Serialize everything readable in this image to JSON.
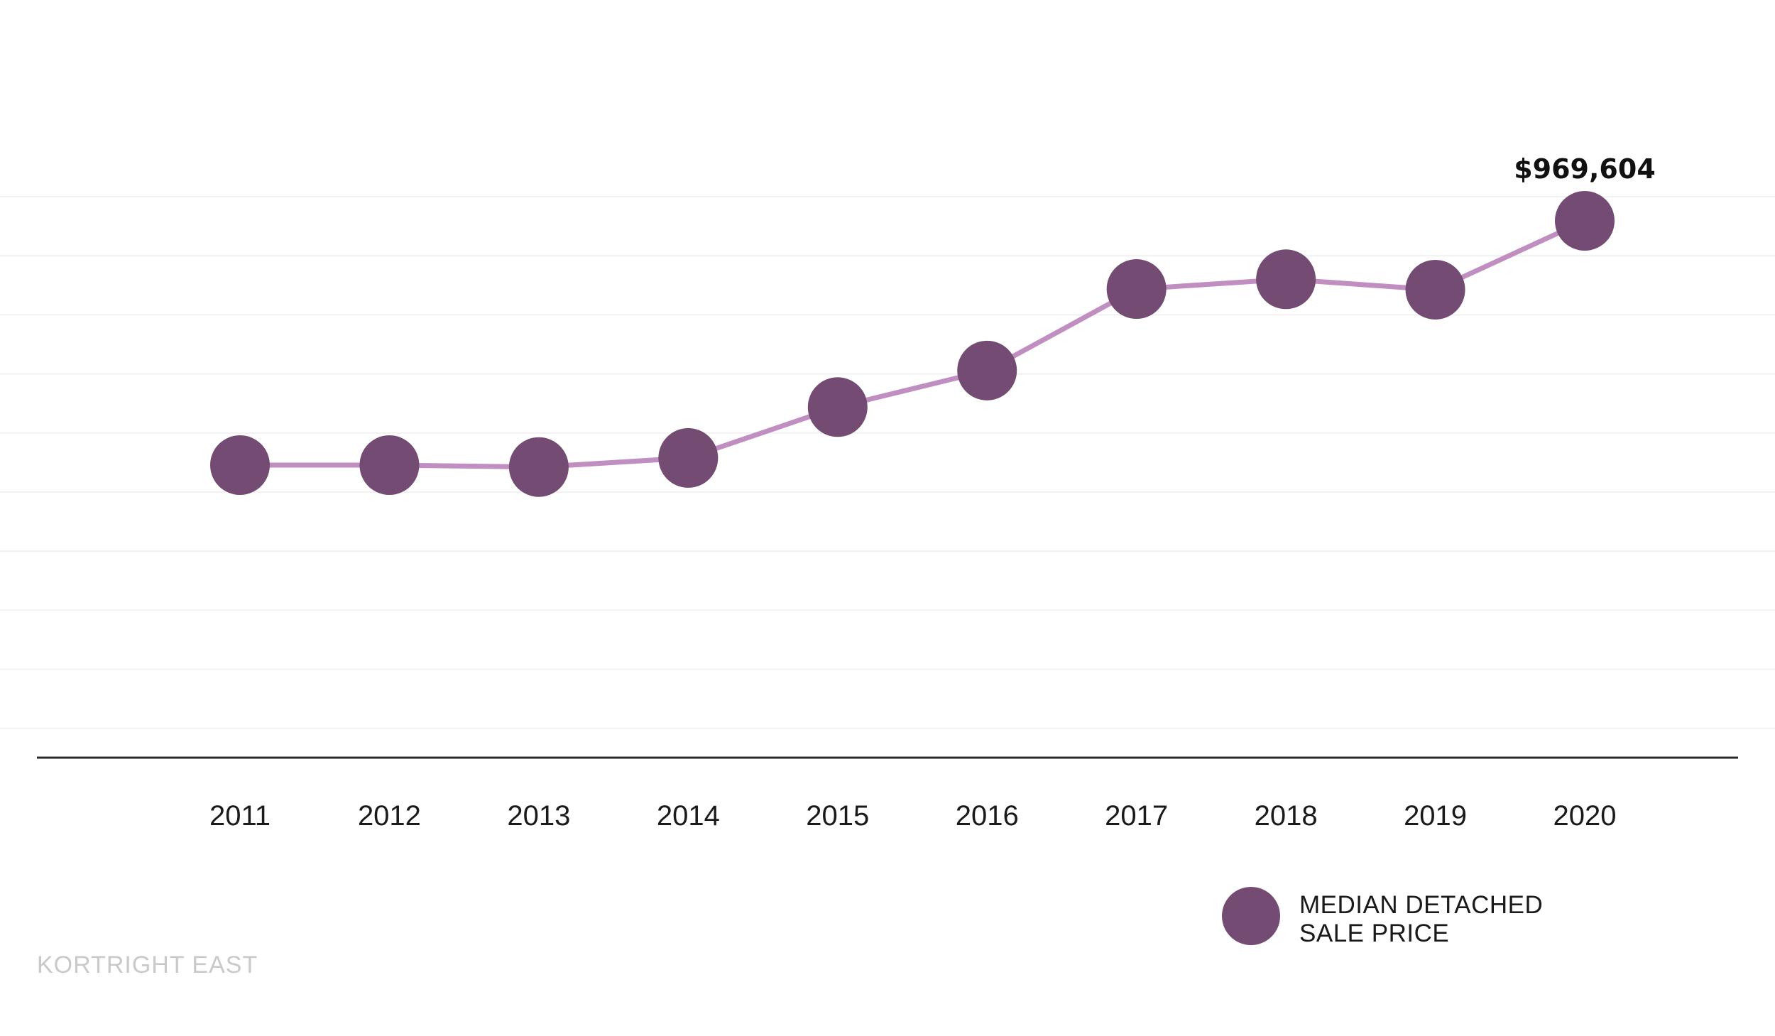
{
  "chart_data": {
    "type": "line",
    "categories": [
      "2011",
      "2012",
      "2013",
      "2014",
      "2015",
      "2016",
      "2017",
      "2018",
      "2019",
      "2020"
    ],
    "series": [
      {
        "name": "MEDIAN DETACHED SALE PRICE",
        "values": [
          595000,
          595000,
          592000,
          606000,
          684000,
          740000,
          865000,
          880000,
          864000,
          969604
        ]
      }
    ],
    "annotations": [
      {
        "category": "2020",
        "text": "$969,604"
      }
    ],
    "legend": {
      "position": "bottom-right",
      "lines": [
        "MEDIAN DETACHED",
        "SALE PRICE"
      ]
    },
    "grid": true,
    "line_color": "#c08ec0",
    "marker_color": "#744b72",
    "watermark": "KORTRIGHT EAST"
  }
}
